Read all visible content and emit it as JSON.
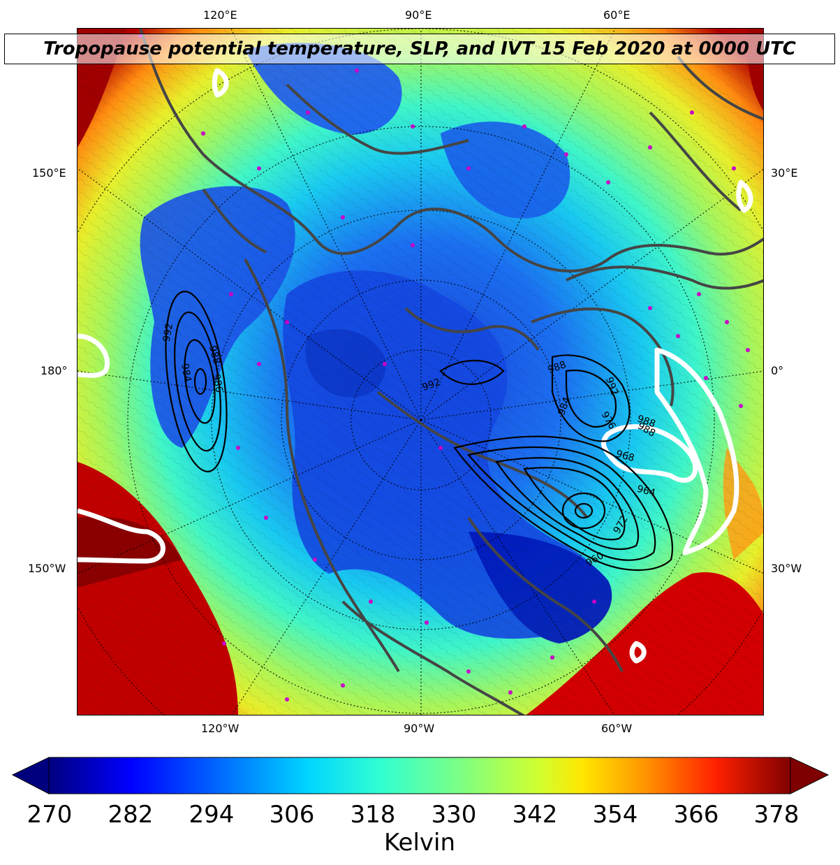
{
  "title": "Tropopause potential temperature, SLP, and IVT 15 Feb 2020 at 0000 UTC",
  "top_labels": [
    "120°E",
    "90°E",
    "60°E"
  ],
  "bottom_labels": [
    "120°W",
    "90°W",
    "60°W"
  ],
  "left_labels": [
    "150°E",
    "180°",
    "150°W"
  ],
  "right_labels": [
    "30°E",
    "0°",
    "30°W"
  ],
  "contour_labels": {
    "west_low": [
      "992",
      "988",
      "984",
      "986"
    ],
    "center": [
      "992"
    ],
    "atlantic_low": [
      "988",
      "988",
      "984",
      "976",
      "972",
      "968",
      "964",
      "960",
      "992",
      "988"
    ]
  },
  "colorbar": {
    "ticks": [
      "270",
      "282",
      "294",
      "306",
      "318",
      "330",
      "342",
      "354",
      "366",
      "378"
    ],
    "units": "Kelvin",
    "colors": [
      "#00007f",
      "#0000ff",
      "#0080ff",
      "#00e5f5",
      "#4dffb0",
      "#a0ff5a",
      "#f0f000",
      "#ff9900",
      "#ff2200",
      "#7f0000"
    ]
  }
}
